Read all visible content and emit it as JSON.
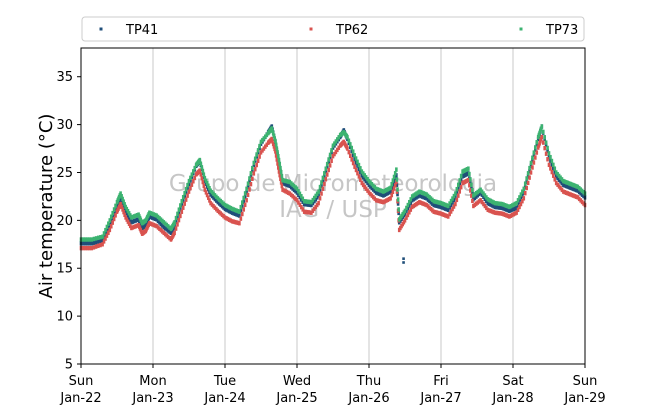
{
  "chart_data": {
    "type": "scatter",
    "title": "",
    "ylabel": "Air temperature (°C)",
    "xlabel": "",
    "ylim": [
      5,
      38
    ],
    "yticks": [
      5,
      10,
      15,
      20,
      25,
      30,
      35
    ],
    "xlim": [
      "2023-01-22",
      "2023-01-29"
    ],
    "xticks": [
      {
        "day": "Sun",
        "date": "Jan-22"
      },
      {
        "day": "Mon",
        "date": "Jan-23"
      },
      {
        "day": "Tue",
        "date": "Jan-24"
      },
      {
        "day": "Wed",
        "date": "Jan-25"
      },
      {
        "day": "Thu",
        "date": "Jan-26"
      },
      {
        "day": "Fri",
        "date": "Jan-27"
      },
      {
        "day": "Sat",
        "date": "Jan-28"
      },
      {
        "day": "Sun",
        "date": "Jan-29"
      }
    ],
    "grid": "vertical",
    "legend_position": "top",
    "watermark": [
      "Grupo de Micrometeorologia",
      "IAG / USP"
    ],
    "series": [
      {
        "name": "TP41",
        "color": "#1f4e79",
        "points": [
          [
            0.0,
            17.6
          ],
          [
            0.15,
            17.6
          ],
          [
            0.3,
            17.9
          ],
          [
            0.4,
            19.5
          ],
          [
            0.5,
            21.4
          ],
          [
            0.55,
            22.4
          ],
          [
            0.62,
            21.0
          ],
          [
            0.7,
            19.8
          ],
          [
            0.8,
            20.1
          ],
          [
            0.85,
            19.2
          ],
          [
            0.9,
            19.5
          ],
          [
            0.95,
            20.4
          ],
          [
            1.05,
            20.1
          ],
          [
            1.15,
            19.3
          ],
          [
            1.25,
            18.7
          ],
          [
            1.3,
            19.4
          ],
          [
            1.4,
            21.6
          ],
          [
            1.5,
            23.8
          ],
          [
            1.6,
            25.7
          ],
          [
            1.65,
            26.2
          ],
          [
            1.72,
            24.1
          ],
          [
            1.8,
            22.7
          ],
          [
            1.9,
            21.9
          ],
          [
            2.0,
            21.2
          ],
          [
            2.1,
            20.8
          ],
          [
            2.2,
            20.5
          ],
          [
            2.3,
            22.9
          ],
          [
            2.4,
            25.8
          ],
          [
            2.5,
            28.0
          ],
          [
            2.6,
            29.2
          ],
          [
            2.65,
            29.8
          ],
          [
            2.7,
            28.2
          ],
          [
            2.75,
            26.0
          ],
          [
            2.8,
            23.9
          ],
          [
            2.9,
            23.6
          ],
          [
            3.0,
            22.9
          ],
          [
            3.1,
            21.7
          ],
          [
            3.2,
            21.6
          ],
          [
            3.3,
            22.6
          ],
          [
            3.4,
            25.1
          ],
          [
            3.5,
            27.6
          ],
          [
            3.6,
            28.7
          ],
          [
            3.65,
            29.4
          ],
          [
            3.7,
            28.5
          ],
          [
            3.8,
            26.4
          ],
          [
            3.9,
            24.7
          ],
          [
            4.0,
            23.7
          ],
          [
            4.1,
            22.9
          ],
          [
            4.2,
            22.6
          ],
          [
            4.3,
            23.0
          ],
          [
            4.38,
            24.7
          ],
          [
            4.42,
            19.8
          ],
          [
            4.5,
            20.7
          ],
          [
            4.6,
            22.1
          ],
          [
            4.7,
            22.6
          ],
          [
            4.8,
            22.3
          ],
          [
            4.9,
            21.6
          ],
          [
            5.0,
            21.4
          ],
          [
            5.1,
            21.1
          ],
          [
            5.2,
            22.4
          ],
          [
            5.3,
            24.6
          ],
          [
            5.38,
            24.9
          ],
          [
            5.45,
            22.2
          ],
          [
            5.55,
            22.9
          ],
          [
            5.65,
            21.8
          ],
          [
            5.75,
            21.4
          ],
          [
            5.85,
            21.3
          ],
          [
            5.95,
            21.0
          ],
          [
            6.05,
            21.3
          ],
          [
            6.15,
            22.9
          ],
          [
            6.25,
            25.7
          ],
          [
            6.35,
            28.5
          ],
          [
            6.4,
            29.8
          ],
          [
            6.5,
            26.6
          ],
          [
            6.6,
            24.6
          ],
          [
            6.7,
            23.7
          ],
          [
            6.8,
            23.4
          ],
          [
            6.9,
            23.1
          ],
          [
            7.0,
            22.4
          ]
        ]
      },
      {
        "name": "TP62",
        "color": "#d9534f",
        "points": [
          [
            0.0,
            17.1
          ],
          [
            0.15,
            17.1
          ],
          [
            0.3,
            17.5
          ],
          [
            0.4,
            19.0
          ],
          [
            0.5,
            20.9
          ],
          [
            0.55,
            21.7
          ],
          [
            0.62,
            20.3
          ],
          [
            0.7,
            19.2
          ],
          [
            0.8,
            19.5
          ],
          [
            0.85,
            18.6
          ],
          [
            0.9,
            18.9
          ],
          [
            0.95,
            19.7
          ],
          [
            1.05,
            19.4
          ],
          [
            1.15,
            18.7
          ],
          [
            1.25,
            18.0
          ],
          [
            1.3,
            18.7
          ],
          [
            1.4,
            20.9
          ],
          [
            1.5,
            23.0
          ],
          [
            1.6,
            24.8
          ],
          [
            1.65,
            25.2
          ],
          [
            1.72,
            23.2
          ],
          [
            1.8,
            21.8
          ],
          [
            1.9,
            21.0
          ],
          [
            2.0,
            20.3
          ],
          [
            2.1,
            19.9
          ],
          [
            2.2,
            19.7
          ],
          [
            2.3,
            22.1
          ],
          [
            2.4,
            24.9
          ],
          [
            2.5,
            27.1
          ],
          [
            2.6,
            28.1
          ],
          [
            2.65,
            28.5
          ],
          [
            2.7,
            27.2
          ],
          [
            2.75,
            25.1
          ],
          [
            2.8,
            23.2
          ],
          [
            2.9,
            22.8
          ],
          [
            3.0,
            22.1
          ],
          [
            3.1,
            20.9
          ],
          [
            3.2,
            20.8
          ],
          [
            3.3,
            21.8
          ],
          [
            3.4,
            24.3
          ],
          [
            3.5,
            26.7
          ],
          [
            3.6,
            27.8
          ],
          [
            3.65,
            28.2
          ],
          [
            3.7,
            27.5
          ],
          [
            3.8,
            25.6
          ],
          [
            3.9,
            23.9
          ],
          [
            4.0,
            22.9
          ],
          [
            4.1,
            22.1
          ],
          [
            4.2,
            21.9
          ],
          [
            4.3,
            22.3
          ],
          [
            4.38,
            24.0
          ],
          [
            4.42,
            19.0
          ],
          [
            4.5,
            20.0
          ],
          [
            4.6,
            21.4
          ],
          [
            4.7,
            21.9
          ],
          [
            4.8,
            21.6
          ],
          [
            4.9,
            20.9
          ],
          [
            5.0,
            20.7
          ],
          [
            5.1,
            20.4
          ],
          [
            5.2,
            21.7
          ],
          [
            5.3,
            23.9
          ],
          [
            5.38,
            24.2
          ],
          [
            5.45,
            21.5
          ],
          [
            5.55,
            22.1
          ],
          [
            5.65,
            21.1
          ],
          [
            5.75,
            20.8
          ],
          [
            5.85,
            20.7
          ],
          [
            5.95,
            20.4
          ],
          [
            6.05,
            20.8
          ],
          [
            6.15,
            22.3
          ],
          [
            6.25,
            25.0
          ],
          [
            6.35,
            27.6
          ],
          [
            6.4,
            28.7
          ],
          [
            6.5,
            25.8
          ],
          [
            6.6,
            23.9
          ],
          [
            6.7,
            23.0
          ],
          [
            6.8,
            22.7
          ],
          [
            6.9,
            22.4
          ],
          [
            7.0,
            21.6
          ]
        ]
      },
      {
        "name": "TP73",
        "color": "#3cb371",
        "points": [
          [
            0.0,
            18.0
          ],
          [
            0.15,
            18.0
          ],
          [
            0.3,
            18.3
          ],
          [
            0.4,
            20.0
          ],
          [
            0.5,
            21.9
          ],
          [
            0.55,
            22.8
          ],
          [
            0.62,
            21.4
          ],
          [
            0.7,
            20.3
          ],
          [
            0.8,
            20.6
          ],
          [
            0.85,
            19.7
          ],
          [
            0.9,
            20.0
          ],
          [
            0.95,
            20.8
          ],
          [
            1.05,
            20.5
          ],
          [
            1.15,
            19.8
          ],
          [
            1.25,
            19.1
          ],
          [
            1.3,
            19.8
          ],
          [
            1.4,
            22.0
          ],
          [
            1.5,
            24.1
          ],
          [
            1.6,
            25.8
          ],
          [
            1.65,
            26.3
          ],
          [
            1.72,
            24.4
          ],
          [
            1.8,
            23.1
          ],
          [
            1.9,
            22.3
          ],
          [
            2.0,
            21.6
          ],
          [
            2.1,
            21.2
          ],
          [
            2.2,
            20.9
          ],
          [
            2.3,
            23.3
          ],
          [
            2.4,
            26.0
          ],
          [
            2.5,
            28.2
          ],
          [
            2.6,
            29.1
          ],
          [
            2.65,
            29.6
          ],
          [
            2.7,
            28.3
          ],
          [
            2.75,
            26.3
          ],
          [
            2.8,
            24.2
          ],
          [
            2.9,
            24.0
          ],
          [
            3.0,
            23.3
          ],
          [
            3.1,
            22.0
          ],
          [
            3.2,
            21.9
          ],
          [
            3.3,
            23.0
          ],
          [
            3.4,
            25.4
          ],
          [
            3.5,
            27.8
          ],
          [
            3.6,
            28.9
          ],
          [
            3.65,
            29.2
          ],
          [
            3.7,
            28.7
          ],
          [
            3.8,
            26.8
          ],
          [
            3.9,
            25.1
          ],
          [
            4.0,
            24.1
          ],
          [
            4.1,
            23.3
          ],
          [
            4.2,
            23.0
          ],
          [
            4.3,
            23.4
          ],
          [
            4.38,
            25.3
          ],
          [
            4.42,
            20.1
          ],
          [
            4.5,
            21.0
          ],
          [
            4.6,
            22.5
          ],
          [
            4.7,
            23.0
          ],
          [
            4.8,
            22.7
          ],
          [
            4.9,
            22.0
          ],
          [
            5.0,
            21.8
          ],
          [
            5.1,
            21.5
          ],
          [
            5.2,
            22.8
          ],
          [
            5.3,
            25.1
          ],
          [
            5.38,
            25.4
          ],
          [
            5.45,
            22.6
          ],
          [
            5.55,
            23.2
          ],
          [
            5.65,
            22.2
          ],
          [
            5.75,
            21.8
          ],
          [
            5.85,
            21.7
          ],
          [
            5.95,
            21.4
          ],
          [
            6.05,
            21.8
          ],
          [
            6.15,
            23.3
          ],
          [
            6.25,
            26.0
          ],
          [
            6.35,
            28.7
          ],
          [
            6.4,
            29.8
          ],
          [
            6.5,
            27.0
          ],
          [
            6.6,
            25.0
          ],
          [
            6.7,
            24.1
          ],
          [
            6.8,
            23.8
          ],
          [
            6.9,
            23.5
          ],
          [
            7.0,
            22.8
          ]
        ]
      },
      {
        "name": "",
        "color": "#1f4e79",
        "points": [
          [
            4.48,
            15.6
          ],
          [
            4.48,
            16.0
          ]
        ]
      }
    ]
  }
}
